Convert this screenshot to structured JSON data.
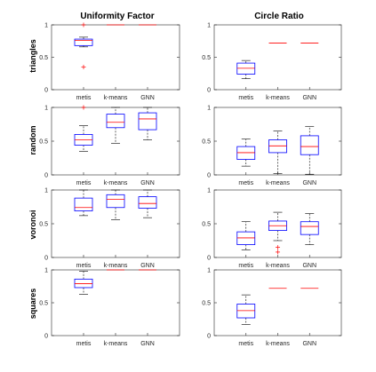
{
  "figure": {
    "col_titles": [
      "Uniformity Factor",
      "Circle Ratio"
    ],
    "row_labels": [
      "triangles",
      "random",
      "voronoi",
      "squares"
    ]
  },
  "colors": {
    "box": "#0000ff",
    "median": "#ff0000",
    "outlier": "#ff0000",
    "whisker": "#000000",
    "axis": "#000000"
  },
  "chart_data": [
    {
      "type": "box",
      "row": "triangles",
      "column": "Uniformity Factor",
      "categories": [
        "metis",
        "k-means",
        "GNN"
      ],
      "ylim": [
        0,
        1
      ],
      "yticks": [
        0,
        0.5,
        1
      ],
      "boxes": [
        {
          "min": 0.66,
          "q1": 0.68,
          "median": 0.76,
          "q3": 0.78,
          "max": 0.81,
          "outliers": [
            0.35,
            1.0
          ]
        },
        {
          "min": 1.0,
          "q1": 1.0,
          "median": 1.0,
          "q3": 1.0,
          "max": 1.0,
          "outliers": []
        },
        {
          "min": 1.0,
          "q1": 1.0,
          "median": 1.0,
          "q3": 1.0,
          "max": 1.0,
          "outliers": []
        }
      ]
    },
    {
      "type": "box",
      "row": "triangles",
      "column": "Circle Ratio",
      "categories": [
        "metis",
        "k-means",
        "GNN"
      ],
      "ylim": [
        0,
        1
      ],
      "yticks": [
        0,
        0.5,
        1
      ],
      "boxes": [
        {
          "min": 0.17,
          "q1": 0.24,
          "median": 0.33,
          "q3": 0.41,
          "max": 0.45,
          "outliers": []
        },
        {
          "min": 0.72,
          "q1": 0.72,
          "median": 0.72,
          "q3": 0.72,
          "max": 0.72,
          "outliers": []
        },
        {
          "min": 0.72,
          "q1": 0.72,
          "median": 0.72,
          "q3": 0.72,
          "max": 0.72,
          "outliers": []
        }
      ]
    },
    {
      "type": "box",
      "row": "random",
      "column": "Uniformity Factor",
      "categories": [
        "metis",
        "k-means",
        "GNN"
      ],
      "ylim": [
        0,
        1
      ],
      "yticks": [
        0,
        0.5,
        1
      ],
      "boxes": [
        {
          "min": 0.35,
          "q1": 0.44,
          "median": 0.52,
          "q3": 0.6,
          "max": 0.73,
          "outliers": [
            1.0
          ]
        },
        {
          "min": 0.47,
          "q1": 0.7,
          "median": 0.78,
          "q3": 0.9,
          "max": 1.0,
          "outliers": []
        },
        {
          "min": 0.52,
          "q1": 0.67,
          "median": 0.83,
          "q3": 0.92,
          "max": 1.0,
          "outliers": []
        }
      ]
    },
    {
      "type": "box",
      "row": "random",
      "column": "Circle Ratio",
      "categories": [
        "metis",
        "k-means",
        "GNN"
      ],
      "ylim": [
        0,
        1
      ],
      "yticks": [
        0,
        0.5,
        1
      ],
      "boxes": [
        {
          "min": 0.13,
          "q1": 0.23,
          "median": 0.33,
          "q3": 0.42,
          "max": 0.53,
          "outliers": []
        },
        {
          "min": 0.02,
          "q1": 0.33,
          "median": 0.43,
          "q3": 0.52,
          "max": 0.65,
          "outliers": []
        },
        {
          "min": 0.01,
          "q1": 0.3,
          "median": 0.42,
          "q3": 0.58,
          "max": 0.72,
          "outliers": []
        }
      ]
    },
    {
      "type": "box",
      "row": "voronoi",
      "column": "Uniformity Factor",
      "categories": [
        "metis",
        "k-means",
        "GNN"
      ],
      "ylim": [
        0,
        1
      ],
      "yticks": [
        0,
        0.5,
        1
      ],
      "boxes": [
        {
          "min": 0.62,
          "q1": 0.69,
          "median": 0.74,
          "q3": 0.88,
          "max": 1.0,
          "outliers": []
        },
        {
          "min": 0.56,
          "q1": 0.74,
          "median": 0.86,
          "q3": 0.93,
          "max": 1.0,
          "outliers": []
        },
        {
          "min": 0.59,
          "q1": 0.73,
          "median": 0.8,
          "q3": 0.9,
          "max": 1.0,
          "outliers": []
        }
      ]
    },
    {
      "type": "box",
      "row": "voronoi",
      "column": "Circle Ratio",
      "categories": [
        "metis",
        "k-means",
        "GNN"
      ],
      "ylim": [
        0,
        1
      ],
      "yticks": [
        0,
        0.5,
        1
      ],
      "boxes": [
        {
          "min": 0.11,
          "q1": 0.19,
          "median": 0.29,
          "q3": 0.38,
          "max": 0.53,
          "outliers": []
        },
        {
          "min": 0.25,
          "q1": 0.4,
          "median": 0.47,
          "q3": 0.54,
          "max": 0.67,
          "outliers": [
            0.15,
            0.08
          ]
        },
        {
          "min": 0.19,
          "q1": 0.34,
          "median": 0.46,
          "q3": 0.53,
          "max": 0.65,
          "outliers": []
        }
      ]
    },
    {
      "type": "box",
      "row": "squares",
      "column": "Uniformity Factor",
      "categories": [
        "metis",
        "k-means",
        "GNN"
      ],
      "ylim": [
        0,
        1
      ],
      "yticks": [
        0,
        0.5,
        1
      ],
      "boxes": [
        {
          "min": 0.63,
          "q1": 0.73,
          "median": 0.79,
          "q3": 0.86,
          "max": 0.98,
          "outliers": []
        },
        {
          "min": 1.0,
          "q1": 1.0,
          "median": 1.0,
          "q3": 1.0,
          "max": 1.0,
          "outliers": []
        },
        {
          "min": 1.0,
          "q1": 1.0,
          "median": 1.0,
          "q3": 1.0,
          "max": 1.0,
          "outliers": []
        }
      ]
    },
    {
      "type": "box",
      "row": "squares",
      "column": "Circle Ratio",
      "categories": [
        "metis",
        "k-means",
        "GNN"
      ],
      "ylim": [
        0,
        1
      ],
      "yticks": [
        0,
        0.5,
        1
      ],
      "boxes": [
        {
          "min": 0.17,
          "q1": 0.27,
          "median": 0.38,
          "q3": 0.48,
          "max": 0.62,
          "outliers": []
        },
        {
          "min": 0.72,
          "q1": 0.72,
          "median": 0.72,
          "q3": 0.72,
          "max": 0.72,
          "outliers": []
        },
        {
          "min": 0.72,
          "q1": 0.72,
          "median": 0.72,
          "q3": 0.72,
          "max": 0.72,
          "outliers": []
        }
      ]
    }
  ]
}
